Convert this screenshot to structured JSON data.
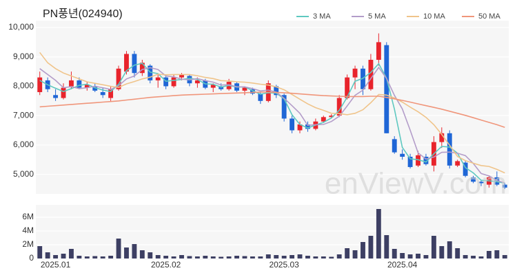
{
  "chart_data": [
    {
      "type": "candlestick",
      "title": "PN풍년(024940)",
      "watermark": "enViewV.com",
      "up_color": "#e8242c",
      "down_color": "#1f66d6",
      "open": [
        7800,
        8200,
        7700,
        7600,
        8000,
        8200,
        7950,
        8000,
        7800,
        7600,
        7900,
        8500,
        9100,
        8450,
        8700,
        8200,
        8300,
        8000,
        8300,
        8350,
        8100,
        8200,
        7950,
        8000,
        7900,
        8100,
        7850,
        7900,
        7750,
        7500,
        8000,
        7700,
        6900,
        6500,
        6700,
        6550,
        6800,
        6950,
        7000,
        7600,
        8300,
        8600,
        7900,
        8900,
        9400,
        6200,
        5700,
        5600,
        5300,
        5600,
        5300,
        6100,
        6400,
        5300,
        5400,
        4900,
        4750,
        4650,
        4900,
        4650
      ],
      "high": [
        8500,
        8300,
        7900,
        8100,
        8500,
        8300,
        8150,
        8100,
        7950,
        8000,
        8700,
        9200,
        9200,
        8900,
        8750,
        8400,
        8400,
        8400,
        8450,
        8400,
        8300,
        8250,
        8100,
        8100,
        8250,
        8150,
        8000,
        7950,
        7800,
        8200,
        8050,
        7750,
        7000,
        6800,
        6800,
        6900,
        7000,
        7050,
        7700,
        8400,
        8700,
        8700,
        9100,
        9800,
        9500,
        6300,
        5850,
        5700,
        5800,
        5700,
        6300,
        6600,
        6500,
        5500,
        5450,
        4950,
        4800,
        4950,
        5100,
        4700
      ],
      "low": [
        7700,
        7800,
        7500,
        7550,
        7900,
        7900,
        7850,
        7800,
        7600,
        7500,
        7850,
        8400,
        8300,
        8350,
        8100,
        7950,
        7900,
        7950,
        8200,
        8000,
        7950,
        7900,
        7800,
        7850,
        7850,
        7800,
        7700,
        7700,
        7400,
        7450,
        7600,
        6800,
        6400,
        6400,
        6450,
        6500,
        6750,
        6900,
        6950,
        7550,
        7900,
        7700,
        7850,
        8700,
        6400,
        5700,
        5500,
        5200,
        5250,
        5300,
        5100,
        5900,
        5200,
        5250,
        4900,
        4700,
        4600,
        4550,
        4600,
        4500
      ],
      "close": [
        8300,
        7900,
        7600,
        7950,
        8200,
        7950,
        8050,
        7850,
        7700,
        7900,
        8600,
        9100,
        8450,
        8800,
        8200,
        8300,
        8000,
        8300,
        8400,
        8100,
        8200,
        7950,
        8050,
        7900,
        8150,
        7850,
        7950,
        7750,
        7500,
        8100,
        7700,
        6900,
        6500,
        6700,
        6550,
        6800,
        6950,
        7000,
        7600,
        8300,
        8600,
        7900,
        8900,
        9500,
        6400,
        5750,
        5600,
        5250,
        5650,
        5350,
        6100,
        6400,
        5300,
        5450,
        4950,
        4750,
        4700,
        4900,
        4650,
        4550
      ],
      "series": [
        {
          "name": "3 MA",
          "color": "#5ec8c0",
          "values": [
            8200,
            8050,
            7930,
            7820,
            7920,
            8030,
            8070,
            7950,
            7870,
            7820,
            8070,
            8530,
            8720,
            8780,
            8480,
            8430,
            8170,
            8200,
            8230,
            8270,
            8230,
            8080,
            8070,
            7970,
            8030,
            7970,
            7980,
            7850,
            7730,
            7780,
            7770,
            7570,
            7030,
            6700,
            6580,
            6680,
            6770,
            6920,
            7180,
            7630,
            8170,
            8270,
            8470,
            8770,
            8270,
            7220,
            5920,
            5530,
            5500,
            5420,
            5700,
            5950,
            5930,
            5720,
            5230,
            5050,
            4800,
            4780,
            4750,
            4700
          ]
        },
        {
          "name": "5 MA",
          "color": "#b39cc9",
          "values": [
            8600,
            8400,
            8200,
            7950,
            7990,
            7920,
            7950,
            8000,
            7950,
            7890,
            8020,
            8250,
            8350,
            8570,
            8630,
            8570,
            8350,
            8320,
            8240,
            8220,
            8260,
            8190,
            8140,
            8040,
            8050,
            7980,
            7980,
            7920,
            7840,
            7870,
            7800,
            7590,
            7340,
            7080,
            6670,
            6690,
            6700,
            6800,
            6980,
            7330,
            7690,
            7870,
            8260,
            8640,
            8260,
            7690,
            7230,
            6500,
            5730,
            5520,
            5590,
            5750,
            5760,
            5720,
            5640,
            5370,
            5030,
            4950,
            4790,
            4710
          ]
        },
        {
          "name": "10 MA",
          "color": "#f0c48a",
          "values": [
            9150,
            8800,
            8600,
            8450,
            8350,
            8250,
            8150,
            8100,
            8050,
            8000,
            7960,
            8080,
            8160,
            8250,
            8310,
            8410,
            8390,
            8400,
            8400,
            8400,
            8360,
            8300,
            8260,
            8190,
            8180,
            8150,
            8140,
            8110,
            8070,
            8040,
            7980,
            7880,
            7720,
            7560,
            7400,
            7270,
            7180,
            7080,
            7070,
            7030,
            7080,
            7200,
            7440,
            7720,
            7700,
            7600,
            7460,
            7290,
            7130,
            6940,
            6690,
            6360,
            5990,
            5610,
            5470,
            5380,
            5300,
            5270,
            5170,
            5050
          ]
        },
        {
          "name": "50 MA",
          "color": "#f0957a",
          "values": [
            7300,
            7320,
            7340,
            7360,
            7380,
            7400,
            7420,
            7440,
            7460,
            7480,
            7500,
            7530,
            7560,
            7590,
            7620,
            7640,
            7660,
            7680,
            7700,
            7710,
            7720,
            7730,
            7740,
            7750,
            7760,
            7770,
            7780,
            7790,
            7800,
            7800,
            7790,
            7780,
            7760,
            7740,
            7720,
            7700,
            7680,
            7670,
            7660,
            7650,
            7650,
            7650,
            7660,
            7660,
            7620,
            7570,
            7520,
            7460,
            7400,
            7340,
            7280,
            7220,
            7150,
            7080,
            7010,
            6930,
            6850,
            6770,
            6690,
            6600
          ]
        }
      ],
      "ylim": [
        4500,
        10000
      ],
      "yticks": [
        {
          "value": 5000,
          "label": "5,000"
        },
        {
          "value": 6000,
          "label": "6,000"
        },
        {
          "value": 7000,
          "label": "7,000"
        },
        {
          "value": 8000,
          "label": "8,000"
        },
        {
          "value": 9000,
          "label": "9,000"
        },
        {
          "value": 10000,
          "label": "10,000"
        }
      ],
      "grid": true
    },
    {
      "type": "bar",
      "color": "#3d3f63",
      "categories": [
        null,
        null,
        "2025.01",
        null,
        null,
        null,
        null,
        null,
        null,
        null,
        null,
        null,
        null,
        null,
        null,
        null,
        "2025.02",
        null,
        null,
        null,
        null,
        null,
        null,
        null,
        null,
        null,
        null,
        null,
        null,
        null,
        null,
        "2025.03",
        null,
        null,
        null,
        null,
        null,
        null,
        null,
        null,
        null,
        null,
        null,
        null,
        null,
        null,
        "2025.04",
        null,
        null,
        null,
        null,
        null,
        null,
        null,
        null,
        null,
        null,
        null,
        null,
        null
      ],
      "values": [
        1800000,
        900000,
        500000,
        700000,
        1400000,
        400000,
        300000,
        350000,
        300000,
        400000,
        2900000,
        1600000,
        2100000,
        1200000,
        900000,
        500000,
        400000,
        300000,
        500000,
        350000,
        300000,
        400000,
        300000,
        250000,
        300000,
        400000,
        350000,
        300000,
        300000,
        600000,
        500000,
        400000,
        500000,
        600000,
        400000,
        300000,
        300000,
        250000,
        600000,
        1500000,
        1200000,
        2400000,
        3300000,
        7200000,
        3400000,
        1400000,
        800000,
        600000,
        700000,
        500000,
        3300000,
        1800000,
        2500000,
        1500000,
        500000,
        400000,
        300000,
        1100000,
        1200000,
        500000
      ],
      "ylim": [
        0,
        7500000
      ],
      "yticks": [
        0,
        {
          "value": 2000000,
          "label": "2M"
        },
        {
          "value": 4000000,
          "label": "4M"
        },
        {
          "value": 6000000,
          "label": "6M"
        }
      ],
      "grid": true
    }
  ]
}
